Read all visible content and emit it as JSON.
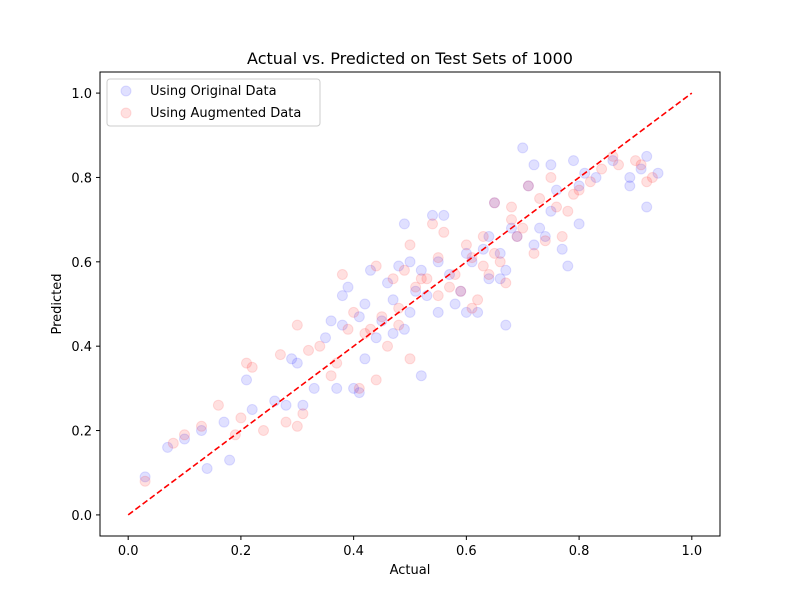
{
  "chart_data": {
    "type": "scatter",
    "title": "Actual vs. Predicted on Test Sets of 1000",
    "xlabel": "Actual",
    "ylabel": "Predicted",
    "xlim": [
      -0.05,
      1.05
    ],
    "ylim": [
      -0.05,
      1.05
    ],
    "xticks": [
      "0.0",
      "0.2",
      "0.4",
      "0.6",
      "0.8",
      "1.0"
    ],
    "yticks": [
      "0.0",
      "0.2",
      "0.4",
      "0.6",
      "0.8",
      "1.0"
    ],
    "grid": false,
    "legend_position": "top-left",
    "reference_line": {
      "style": "dashed",
      "color": "#ff0000",
      "points": [
        [
          0,
          0
        ],
        [
          1,
          1
        ]
      ]
    },
    "series": [
      {
        "name": "Using Original Data",
        "color": "#0000ff",
        "opacity": 0.12,
        "points": [
          [
            0.03,
            0.09
          ],
          [
            0.07,
            0.16
          ],
          [
            0.1,
            0.18
          ],
          [
            0.13,
            0.2
          ],
          [
            0.14,
            0.11
          ],
          [
            0.17,
            0.22
          ],
          [
            0.18,
            0.13
          ],
          [
            0.21,
            0.32
          ],
          [
            0.22,
            0.25
          ],
          [
            0.26,
            0.27
          ],
          [
            0.28,
            0.26
          ],
          [
            0.29,
            0.37
          ],
          [
            0.3,
            0.36
          ],
          [
            0.31,
            0.26
          ],
          [
            0.33,
            0.3
          ],
          [
            0.35,
            0.42
          ],
          [
            0.36,
            0.46
          ],
          [
            0.37,
            0.3
          ],
          [
            0.38,
            0.45
          ],
          [
            0.38,
            0.52
          ],
          [
            0.39,
            0.54
          ],
          [
            0.4,
            0.3
          ],
          [
            0.41,
            0.29
          ],
          [
            0.41,
            0.47
          ],
          [
            0.42,
            0.5
          ],
          [
            0.42,
            0.37
          ],
          [
            0.43,
            0.58
          ],
          [
            0.44,
            0.42
          ],
          [
            0.45,
            0.46
          ],
          [
            0.46,
            0.55
          ],
          [
            0.47,
            0.43
          ],
          [
            0.47,
            0.51
          ],
          [
            0.48,
            0.59
          ],
          [
            0.49,
            0.69
          ],
          [
            0.49,
            0.44
          ],
          [
            0.5,
            0.6
          ],
          [
            0.5,
            0.48
          ],
          [
            0.51,
            0.53
          ],
          [
            0.52,
            0.58
          ],
          [
            0.52,
            0.33
          ],
          [
            0.53,
            0.52
          ],
          [
            0.54,
            0.71
          ],
          [
            0.55,
            0.48
          ],
          [
            0.55,
            0.6
          ],
          [
            0.56,
            0.71
          ],
          [
            0.57,
            0.57
          ],
          [
            0.58,
            0.5
          ],
          [
            0.59,
            0.53
          ],
          [
            0.6,
            0.62
          ],
          [
            0.6,
            0.48
          ],
          [
            0.61,
            0.6
          ],
          [
            0.62,
            0.48
          ],
          [
            0.63,
            0.63
          ],
          [
            0.64,
            0.56
          ],
          [
            0.64,
            0.66
          ],
          [
            0.65,
            0.74
          ],
          [
            0.66,
            0.56
          ],
          [
            0.66,
            0.62
          ],
          [
            0.67,
            0.45
          ],
          [
            0.67,
            0.58
          ],
          [
            0.68,
            0.68
          ],
          [
            0.69,
            0.66
          ],
          [
            0.7,
            0.87
          ],
          [
            0.71,
            0.78
          ],
          [
            0.72,
            0.83
          ],
          [
            0.72,
            0.64
          ],
          [
            0.73,
            0.68
          ],
          [
            0.74,
            0.66
          ],
          [
            0.75,
            0.83
          ],
          [
            0.75,
            0.72
          ],
          [
            0.76,
            0.77
          ],
          [
            0.77,
            0.63
          ],
          [
            0.78,
            0.59
          ],
          [
            0.79,
            0.84
          ],
          [
            0.8,
            0.78
          ],
          [
            0.8,
            0.69
          ],
          [
            0.81,
            0.81
          ],
          [
            0.83,
            0.8
          ],
          [
            0.86,
            0.84
          ],
          [
            0.89,
            0.8
          ],
          [
            0.89,
            0.78
          ],
          [
            0.91,
            0.82
          ],
          [
            0.92,
            0.85
          ],
          [
            0.92,
            0.73
          ],
          [
            0.94,
            0.81
          ]
        ]
      },
      {
        "name": "Using Augmented Data",
        "color": "#ff0000",
        "opacity": 0.12,
        "points": [
          [
            0.03,
            0.08
          ],
          [
            0.08,
            0.17
          ],
          [
            0.1,
            0.19
          ],
          [
            0.13,
            0.21
          ],
          [
            0.16,
            0.26
          ],
          [
            0.19,
            0.19
          ],
          [
            0.2,
            0.23
          ],
          [
            0.21,
            0.36
          ],
          [
            0.22,
            0.35
          ],
          [
            0.24,
            0.2
          ],
          [
            0.27,
            0.38
          ],
          [
            0.28,
            0.22
          ],
          [
            0.3,
            0.21
          ],
          [
            0.3,
            0.45
          ],
          [
            0.31,
            0.24
          ],
          [
            0.32,
            0.39
          ],
          [
            0.34,
            0.4
          ],
          [
            0.36,
            0.33
          ],
          [
            0.37,
            0.36
          ],
          [
            0.38,
            0.57
          ],
          [
            0.39,
            0.44
          ],
          [
            0.4,
            0.48
          ],
          [
            0.41,
            0.3
          ],
          [
            0.42,
            0.43
          ],
          [
            0.43,
            0.44
          ],
          [
            0.44,
            0.32
          ],
          [
            0.44,
            0.59
          ],
          [
            0.45,
            0.47
          ],
          [
            0.46,
            0.4
          ],
          [
            0.47,
            0.56
          ],
          [
            0.48,
            0.45
          ],
          [
            0.48,
            0.49
          ],
          [
            0.49,
            0.58
          ],
          [
            0.5,
            0.64
          ],
          [
            0.5,
            0.37
          ],
          [
            0.51,
            0.54
          ],
          [
            0.52,
            0.56
          ],
          [
            0.53,
            0.56
          ],
          [
            0.54,
            0.69
          ],
          [
            0.55,
            0.61
          ],
          [
            0.55,
            0.52
          ],
          [
            0.56,
            0.67
          ],
          [
            0.57,
            0.54
          ],
          [
            0.58,
            0.57
          ],
          [
            0.59,
            0.53
          ],
          [
            0.6,
            0.64
          ],
          [
            0.61,
            0.49
          ],
          [
            0.61,
            0.61
          ],
          [
            0.62,
            0.51
          ],
          [
            0.63,
            0.59
          ],
          [
            0.63,
            0.66
          ],
          [
            0.64,
            0.57
          ],
          [
            0.65,
            0.74
          ],
          [
            0.65,
            0.62
          ],
          [
            0.66,
            0.6
          ],
          [
            0.67,
            0.55
          ],
          [
            0.68,
            0.7
          ],
          [
            0.68,
            0.73
          ],
          [
            0.69,
            0.66
          ],
          [
            0.7,
            0.68
          ],
          [
            0.71,
            0.78
          ],
          [
            0.72,
            0.62
          ],
          [
            0.73,
            0.75
          ],
          [
            0.74,
            0.65
          ],
          [
            0.75,
            0.8
          ],
          [
            0.76,
            0.73
          ],
          [
            0.77,
            0.66
          ],
          [
            0.78,
            0.72
          ],
          [
            0.79,
            0.76
          ],
          [
            0.8,
            0.77
          ],
          [
            0.82,
            0.79
          ],
          [
            0.84,
            0.82
          ],
          [
            0.86,
            0.85
          ],
          [
            0.87,
            0.83
          ],
          [
            0.9,
            0.84
          ],
          [
            0.91,
            0.83
          ],
          [
            0.92,
            0.79
          ],
          [
            0.93,
            0.8
          ]
        ]
      }
    ]
  }
}
